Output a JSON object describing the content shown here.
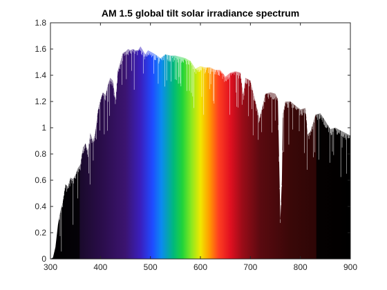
{
  "chart_data": {
    "type": "area",
    "title": "AM 1.5 global tilt solar irradiance spectrum",
    "xlabel": "",
    "ylabel": "",
    "xlim": [
      300,
      900
    ],
    "ylim": [
      0,
      1.8
    ],
    "x_ticks": [
      300,
      400,
      500,
      600,
      700,
      800,
      900
    ],
    "y_ticks": [
      0,
      0.2,
      0.4,
      0.6,
      0.8,
      1,
      1.2,
      1.4,
      1.6,
      1.8
    ],
    "grid": false,
    "legend": "none",
    "fill": "wavelength-colored",
    "series": [
      {
        "x": [
          300,
          305,
          310,
          315,
          320,
          325,
          330,
          335,
          340,
          345,
          350,
          355,
          360,
          365,
          370,
          375,
          380,
          385,
          390,
          395,
          400,
          405,
          410,
          415,
          420,
          425,
          430,
          435,
          440,
          445,
          450,
          455,
          460,
          465,
          470,
          475,
          480,
          485,
          490,
          495,
          500,
          510,
          520,
          530,
          540,
          550,
          560,
          570,
          580,
          590,
          600,
          610,
          620,
          630,
          640,
          650,
          660,
          670,
          680,
          686,
          690,
          700,
          710,
          718,
          725,
          730,
          740,
          750,
          755,
          760,
          763,
          765,
          770,
          780,
          790,
          800,
          810,
          815,
          820,
          830,
          840,
          850,
          860,
          870,
          880,
          890,
          900
        ],
        "y": [
          0.0,
          0.01,
          0.09,
          0.26,
          0.37,
          0.44,
          0.57,
          0.55,
          0.62,
          0.61,
          0.64,
          0.69,
          0.72,
          0.85,
          0.88,
          0.82,
          0.96,
          0.9,
          0.97,
          1.13,
          1.21,
          1.27,
          1.25,
          1.33,
          1.38,
          1.36,
          1.21,
          1.44,
          1.5,
          1.57,
          1.58,
          1.6,
          1.59,
          1.6,
          1.59,
          1.59,
          1.62,
          1.59,
          1.56,
          1.59,
          1.58,
          1.56,
          1.53,
          1.56,
          1.55,
          1.55,
          1.54,
          1.53,
          1.51,
          1.45,
          1.47,
          1.46,
          1.46,
          1.44,
          1.44,
          1.39,
          1.42,
          1.43,
          1.42,
          1.25,
          1.38,
          1.36,
          1.2,
          1.07,
          1.17,
          1.26,
          1.27,
          1.26,
          1.22,
          0.3,
          0.6,
          1.1,
          1.2,
          1.2,
          1.17,
          1.14,
          1.15,
          0.95,
          0.97,
          1.1,
          1.11,
          1.05,
          0.99,
          1.0,
          0.98,
          0.96,
          0.94
        ]
      }
    ]
  }
}
